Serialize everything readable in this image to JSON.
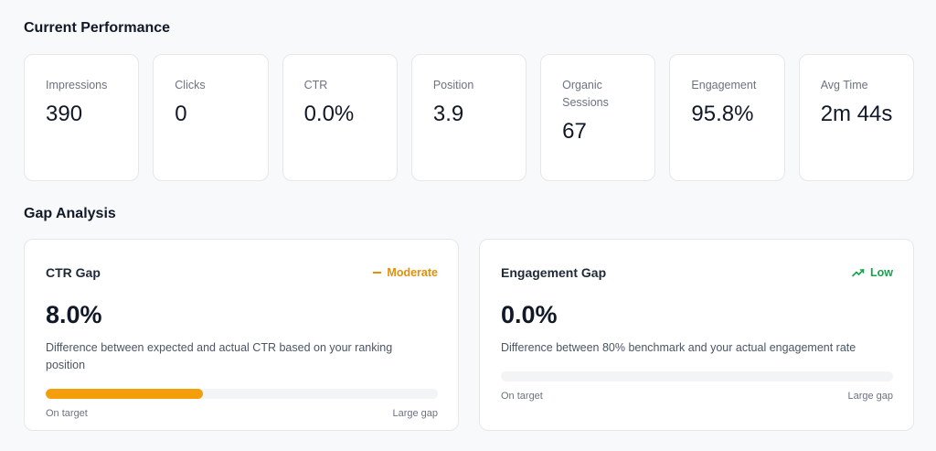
{
  "sections": {
    "performance_title": "Current Performance",
    "gap_title": "Gap Analysis"
  },
  "metrics": [
    {
      "label": "Impressions",
      "value": "390"
    },
    {
      "label": "Clicks",
      "value": "0"
    },
    {
      "label": "CTR",
      "value": "0.0%"
    },
    {
      "label": "Position",
      "value": "3.9"
    },
    {
      "label": "Organic Sessions",
      "value": "67"
    },
    {
      "label": "Engagement",
      "value": "95.8%"
    },
    {
      "label": "Avg Time",
      "value": "2m 44s"
    }
  ],
  "gaps": [
    {
      "title": "CTR Gap",
      "badge": "Moderate",
      "badge_icon": "minus-icon",
      "badge_color": "#e0900b",
      "value": "8.0%",
      "description": "Difference between expected and actual CTR based on your ranking position",
      "progress": 0.4,
      "bar_color": "#f59e0b",
      "min_label": "On target",
      "max_label": "Large gap"
    },
    {
      "title": "Engagement Gap",
      "badge": "Low",
      "badge_icon": "trending-up-icon",
      "badge_color": "#16a34a",
      "value": "0.0%",
      "description": "Difference between 80% benchmark and your actual engagement rate",
      "progress": 0.0,
      "bar_color": "#f59e0b",
      "min_label": "On target",
      "max_label": "Large gap"
    }
  ]
}
